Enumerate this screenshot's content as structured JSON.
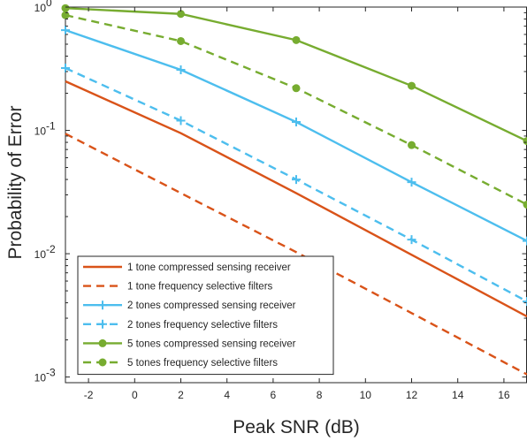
{
  "chart_data": {
    "type": "line",
    "xlabel": "Peak SNR (dB)",
    "ylabel": "Probability of Error",
    "xlim": [
      -3,
      17
    ],
    "ylim": [
      0.0009,
      1
    ],
    "yscale": "log",
    "grid": false,
    "legend_placement": "bottom-left",
    "x_ticks": [
      -2,
      0,
      2,
      4,
      6,
      8,
      10,
      12,
      14,
      16
    ],
    "x_tick_labels": [
      "-2",
      "0",
      "2",
      "4",
      "6",
      "8",
      "10",
      "12",
      "14",
      "16"
    ],
    "y_ticks": [
      0.001,
      0.01,
      0.1,
      1
    ],
    "y_tick_labels": [
      {
        "base": "10",
        "exp": "-3"
      },
      {
        "base": "10",
        "exp": "-2"
      },
      {
        "base": "10",
        "exp": "-1"
      },
      {
        "base": "10",
        "exp": "0"
      }
    ],
    "series": [
      {
        "name": "1 tone compressed sensing receiver",
        "color": "#d95319",
        "dash": "solid",
        "marker": "none",
        "x": [
          -3,
          2,
          7,
          12,
          17
        ],
        "y": [
          0.25,
          0.095,
          0.031,
          0.0098,
          0.0031
        ]
      },
      {
        "name": "1 tone frequency selective filters",
        "color": "#d95319",
        "dash": "dashed",
        "marker": "none",
        "x": [
          -3,
          2,
          7,
          12,
          17
        ],
        "y": [
          0.094,
          0.031,
          0.0103,
          0.0033,
          0.00105
        ]
      },
      {
        "name": "2 tones compressed sensing receiver",
        "color": "#4dbeee",
        "dash": "solid",
        "marker": "plus",
        "x": [
          -3,
          2,
          7,
          12,
          17
        ],
        "y": [
          0.65,
          0.31,
          0.117,
          0.038,
          0.0127
        ]
      },
      {
        "name": "2 tones frequency selective filters",
        "color": "#4dbeee",
        "dash": "dashed",
        "marker": "plus",
        "x": [
          -3,
          2,
          7,
          12,
          17
        ],
        "y": [
          0.32,
          0.12,
          0.04,
          0.013,
          0.0041
        ]
      },
      {
        "name": "5 tones compressed sensing receiver",
        "color": "#77ac30",
        "dash": "solid",
        "marker": "circle",
        "x": [
          -3,
          2,
          7,
          12,
          17
        ],
        "y": [
          0.98,
          0.88,
          0.54,
          0.23,
          0.082
        ]
      },
      {
        "name": "5 tones frequency selective filters",
        "color": "#77ac30",
        "dash": "dashed",
        "marker": "circle",
        "x": [
          -3,
          2,
          7,
          12,
          17
        ],
        "y": [
          0.86,
          0.53,
          0.22,
          0.076,
          0.025
        ]
      }
    ]
  }
}
